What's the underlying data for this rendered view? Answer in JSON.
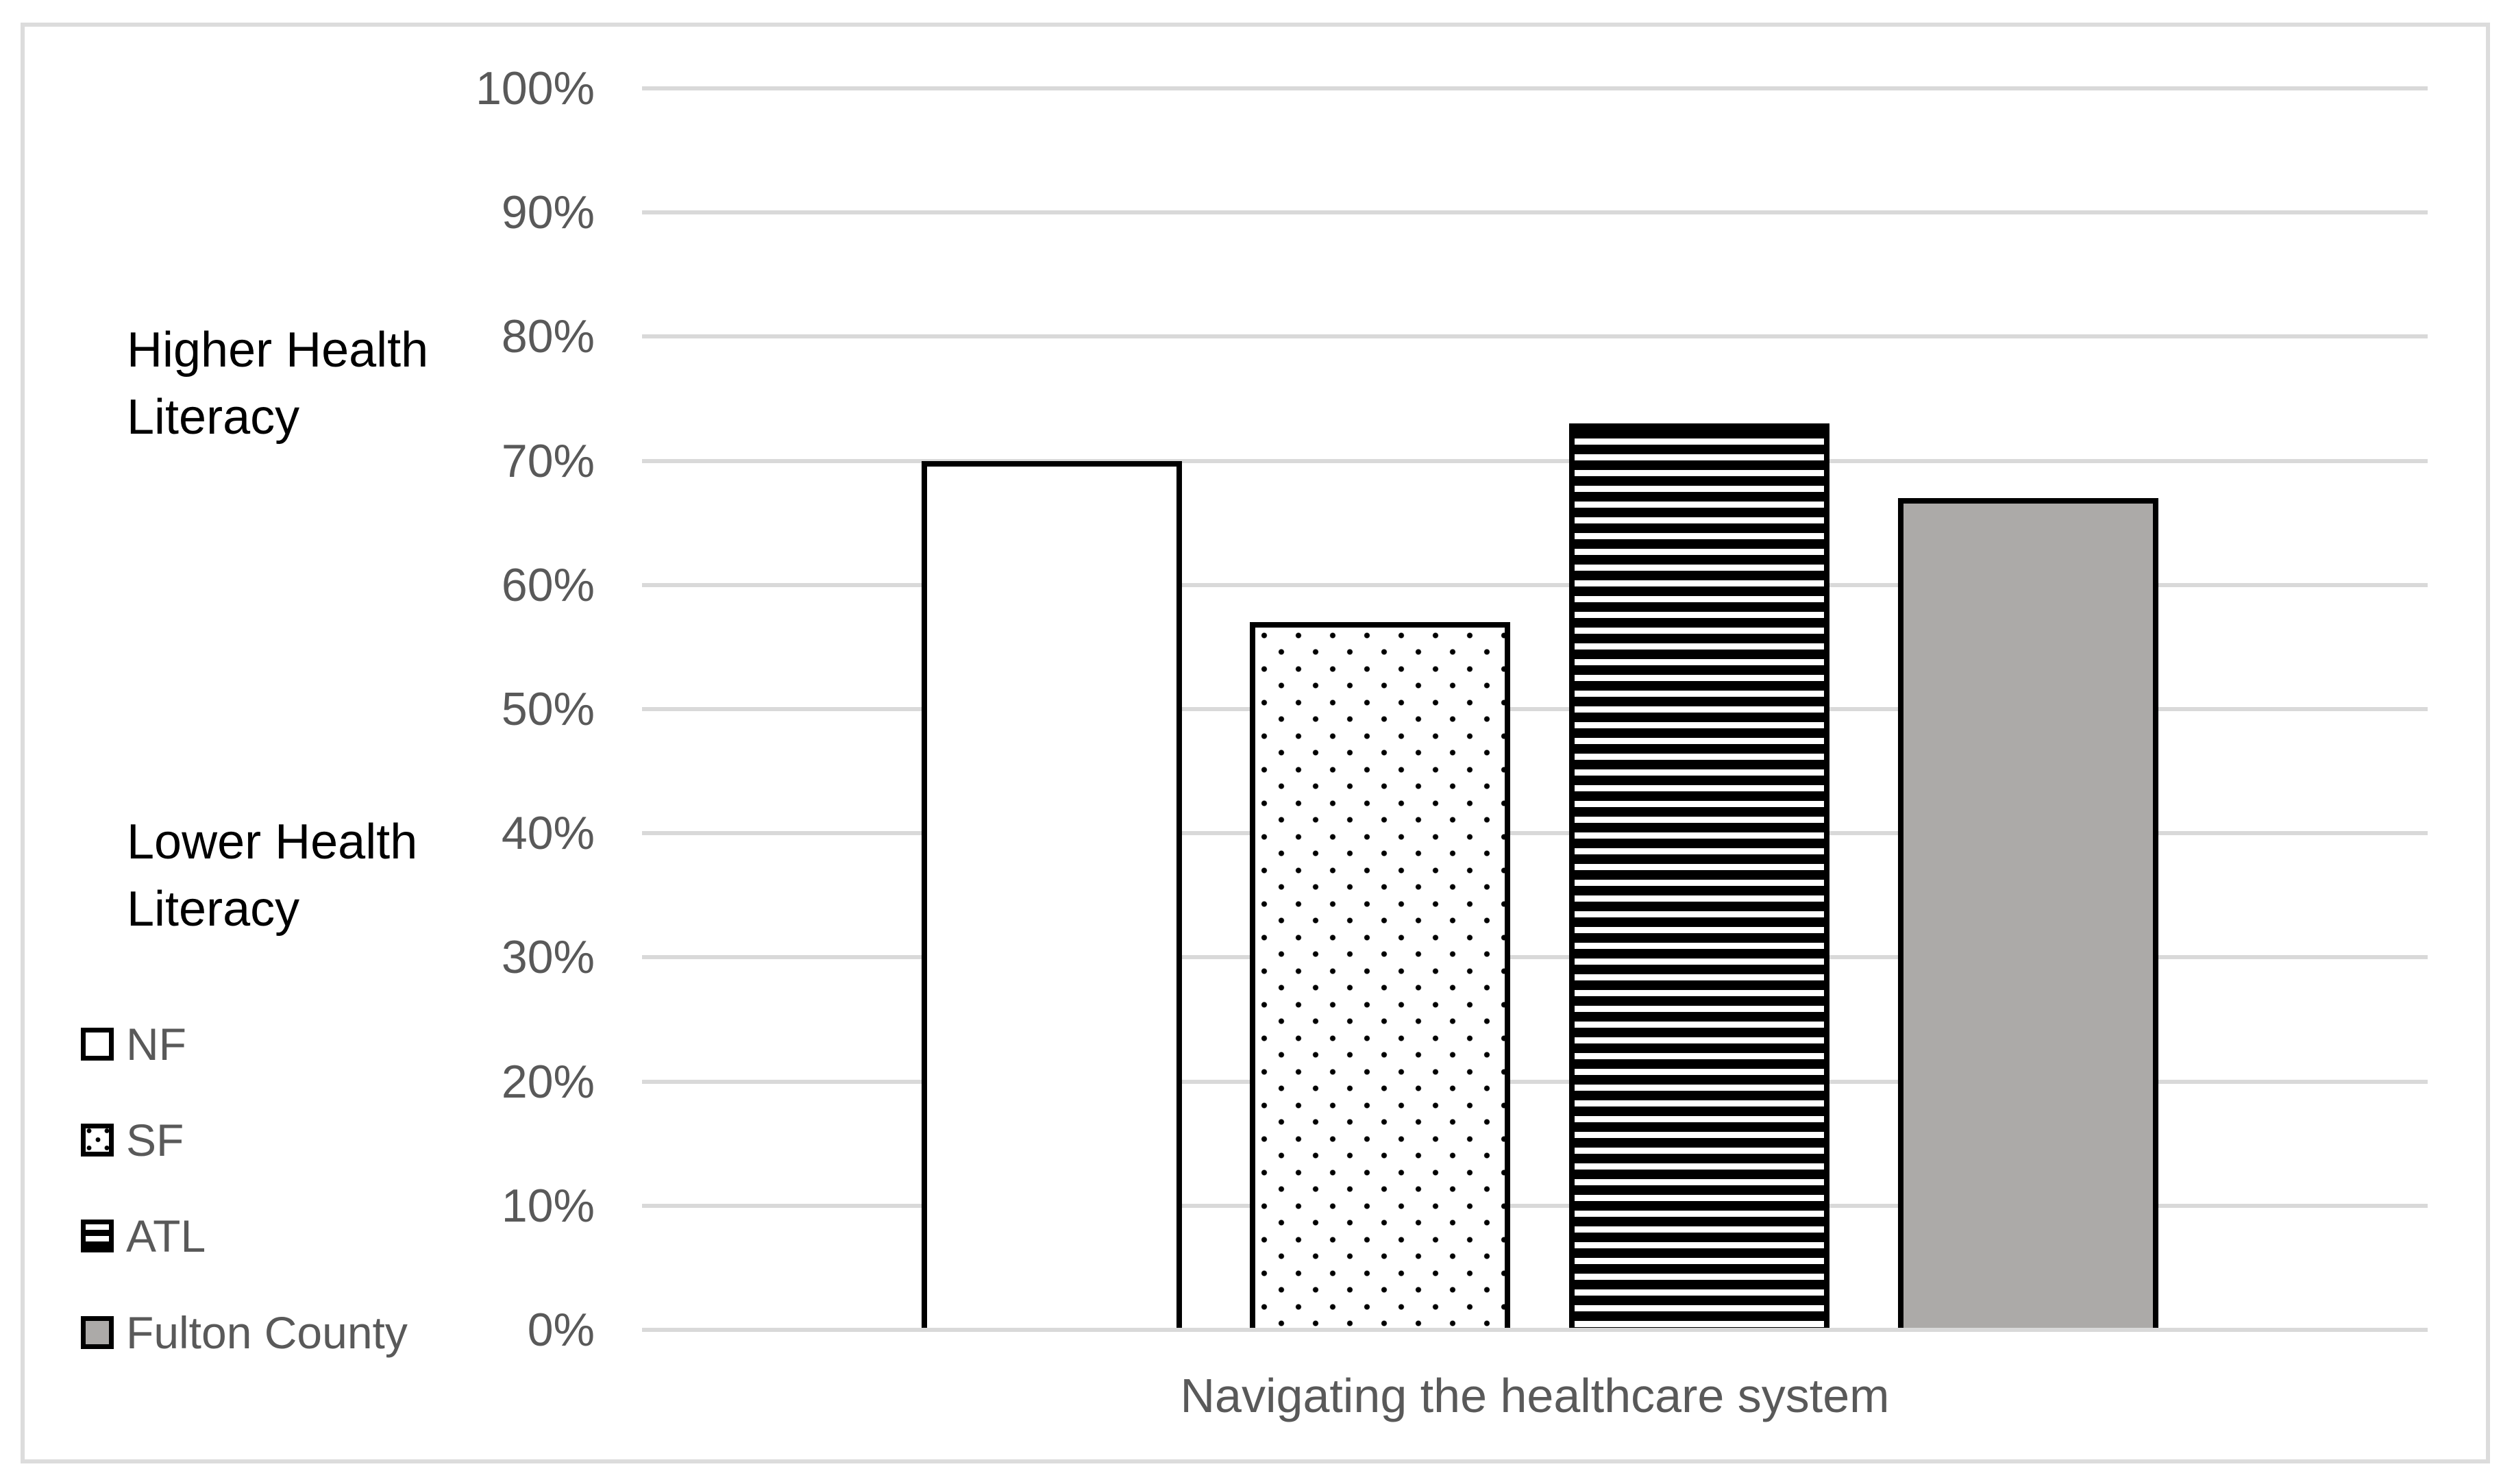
{
  "chart_data": {
    "type": "bar",
    "title": "",
    "categories": [
      "Navigating the healthcare system"
    ],
    "series": [
      {
        "name": "NF",
        "pattern": "white-outline",
        "values": [
          70
        ]
      },
      {
        "name": "SF",
        "pattern": "dotted",
        "values": [
          57
        ]
      },
      {
        "name": "ATL",
        "pattern": "horizontal-stripes",
        "values": [
          73
        ]
      },
      {
        "name": "Fulton County",
        "pattern": "solid-gray",
        "values": [
          67
        ]
      }
    ],
    "xlabel": "Navigating the healthcare system",
    "ylabel": "",
    "ylim": [
      0,
      100
    ],
    "yticks": [
      "0%",
      "10%",
      "20%",
      "30%",
      "40%",
      "50%",
      "60%",
      "70%",
      "80%",
      "90%",
      "100%"
    ],
    "grid": "horizontal",
    "legend_position": "bottom-left",
    "colors": {
      "bar_border": "#000000",
      "solid_gray_fill": "#ACAAA8",
      "gridline": "#D9D9D9",
      "frame_border": "#DCDCDC",
      "axis_text": "#595959",
      "annotation_text": "#000000"
    }
  },
  "annotations": {
    "higher": "Higher Health\nLiteracy",
    "lower": "Lower Health\nLiteracy"
  }
}
